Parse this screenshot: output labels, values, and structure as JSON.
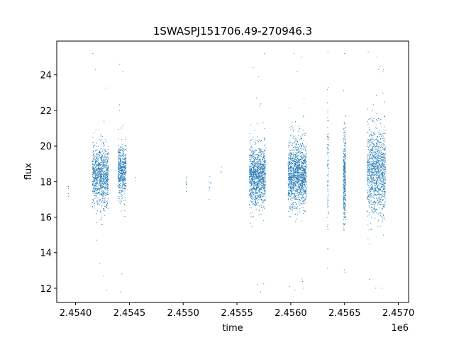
{
  "chart_data": {
    "type": "scatter",
    "title": "1SWASPJ151706.49-270946.3",
    "xlabel": "time",
    "ylabel": "flux",
    "x_offset_label": "1e6",
    "xlim": [
      2453825,
      2457095
    ],
    "ylim": [
      11.2,
      25.9
    ],
    "x_ticks": [
      2454000,
      2454500,
      2455000,
      2455500,
      2456000,
      2456500,
      2457000
    ],
    "x_tick_labels": [
      "2.4540",
      "2.4545",
      "2.4550",
      "2.4555",
      "2.4560",
      "2.4565",
      "2.4570"
    ],
    "y_ticks": [
      12,
      14,
      16,
      18,
      20,
      22,
      24
    ],
    "y_tick_labels": [
      "12",
      "14",
      "16",
      "18",
      "20",
      "22",
      "24"
    ],
    "grid": false,
    "marker_color": "#1f77b4",
    "clusters": [
      {
        "x_range": [
          2453930,
          2453935
        ],
        "median": 17.6,
        "spread": 0.3,
        "count": 5
      },
      {
        "x_range": [
          2454155,
          2454305
        ],
        "median": 18.3,
        "spread": 0.9,
        "count": 900
      },
      {
        "x_range": [
          2454395,
          2454470
        ],
        "median": 18.6,
        "spread": 0.8,
        "count": 500
      },
      {
        "x_range": [
          2454550,
          2454555
        ],
        "median": 18.2,
        "spread": 0.1,
        "count": 2
      },
      {
        "x_range": [
          2455025,
          2455035
        ],
        "median": 17.8,
        "spread": 0.4,
        "count": 8
      },
      {
        "x_range": [
          2455235,
          2455260
        ],
        "median": 17.6,
        "spread": 0.5,
        "count": 8
      },
      {
        "x_range": [
          2455350,
          2455360
        ],
        "median": 18.5,
        "spread": 0.1,
        "count": 3
      },
      {
        "x_range": [
          2455615,
          2455765
        ],
        "median": 18.3,
        "spread": 0.9,
        "count": 1100
      },
      {
        "x_range": [
          2455975,
          2456145
        ],
        "median": 18.4,
        "spread": 1.0,
        "count": 1300
      },
      {
        "x_range": [
          2456340,
          2456350
        ],
        "median": 19.0,
        "spread": 2.0,
        "count": 80
      },
      {
        "x_range": [
          2456490,
          2456510
        ],
        "median": 18.3,
        "spread": 1.5,
        "count": 350
      },
      {
        "x_range": [
          2456710,
          2456880
        ],
        "median": 18.6,
        "spread": 1.3,
        "count": 1100
      }
    ],
    "outlier_points": [
      [
        2454160,
        25.2
      ],
      [
        2454185,
        24.3
      ],
      [
        2454225,
        13.4
      ],
      [
        2454260,
        12.7
      ],
      [
        2454290,
        11.9
      ],
      [
        2454410,
        24.6
      ],
      [
        2454440,
        24.2
      ],
      [
        2454430,
        12.8
      ],
      [
        2454420,
        11.8
      ],
      [
        2455650,
        24.4
      ],
      [
        2455700,
        23.9
      ],
      [
        2455755,
        25.2
      ],
      [
        2455690,
        12.2
      ],
      [
        2455720,
        11.8
      ],
      [
        2456030,
        25.2
      ],
      [
        2456060,
        24.2
      ],
      [
        2456100,
        25.0
      ],
      [
        2455990,
        12.1
      ],
      [
        2456040,
        11.9
      ],
      [
        2456120,
        12.0
      ],
      [
        2456345,
        25.3
      ],
      [
        2456345,
        14.2
      ],
      [
        2456500,
        25.2
      ],
      [
        2456505,
        12.9
      ],
      [
        2456720,
        25.3
      ],
      [
        2456800,
        25.0
      ],
      [
        2456860,
        24.3
      ],
      [
        2456730,
        12.5
      ],
      [
        2456790,
        12.0
      ],
      [
        2456850,
        12.0
      ]
    ]
  }
}
